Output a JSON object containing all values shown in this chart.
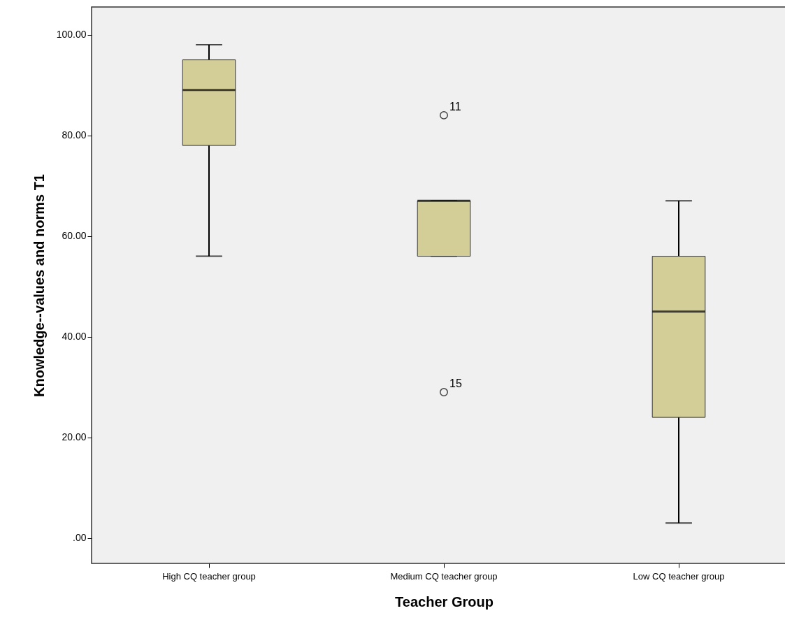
{
  "chart_data": {
    "type": "box",
    "xlabel": "Teacher Group",
    "ylabel": "Knowledge--values and norms T1",
    "categories": [
      "High CQ teacher group",
      "Medium CQ teacher group",
      "Low CQ teacher group"
    ],
    "series": [
      {
        "color": "#d3ce97",
        "boxes": [
          {
            "low": 56,
            "q1": 78,
            "median": 89,
            "q3": 95,
            "high": 98
          },
          {
            "low": 56,
            "q1": 56,
            "median": 67,
            "q3": 67,
            "high": 67,
            "outliers": [
              84,
              29
            ]
          },
          {
            "low": 3,
            "q1": 24,
            "median": 45,
            "q3": 56,
            "high": 67
          }
        ]
      }
    ],
    "ylim": [
      -5,
      105.5
    ],
    "yticks": [
      {
        "value": 0,
        "label": ".00"
      },
      {
        "value": 20,
        "label": "20.00"
      },
      {
        "value": 40,
        "label": "40.00"
      },
      {
        "value": 60,
        "label": "60.00"
      },
      {
        "value": 80,
        "label": "80.00"
      },
      {
        "value": 100,
        "label": "100.00"
      }
    ],
    "annotations": [
      "11",
      "15"
    ],
    "grid": false
  }
}
